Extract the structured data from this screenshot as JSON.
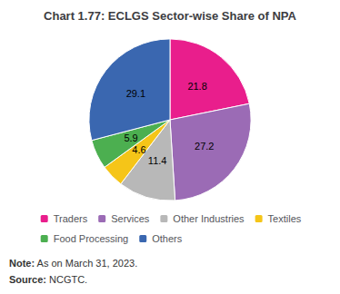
{
  "chart_data": {
    "type": "pie",
    "title": "Chart 1.77: ECLGS Sector-wise Share of NPA",
    "categories": [
      "Traders",
      "Services",
      "Other Industries",
      "Textiles",
      "Food Processing",
      "Others"
    ],
    "values": [
      21.8,
      27.2,
      11.4,
      4.6,
      5.9,
      29.1
    ],
    "colors": [
      "#E91E8C",
      "#9B6BB5",
      "#B8B8B8",
      "#F5C518",
      "#4CAF50",
      "#3A67B0"
    ],
    "data_labels": true,
    "legend": "bottom",
    "annotations": [
      {
        "bold": "Note:",
        "text": "As on March 31, 2023."
      },
      {
        "bold": "Source:",
        "text": "NCGTC."
      }
    ]
  }
}
